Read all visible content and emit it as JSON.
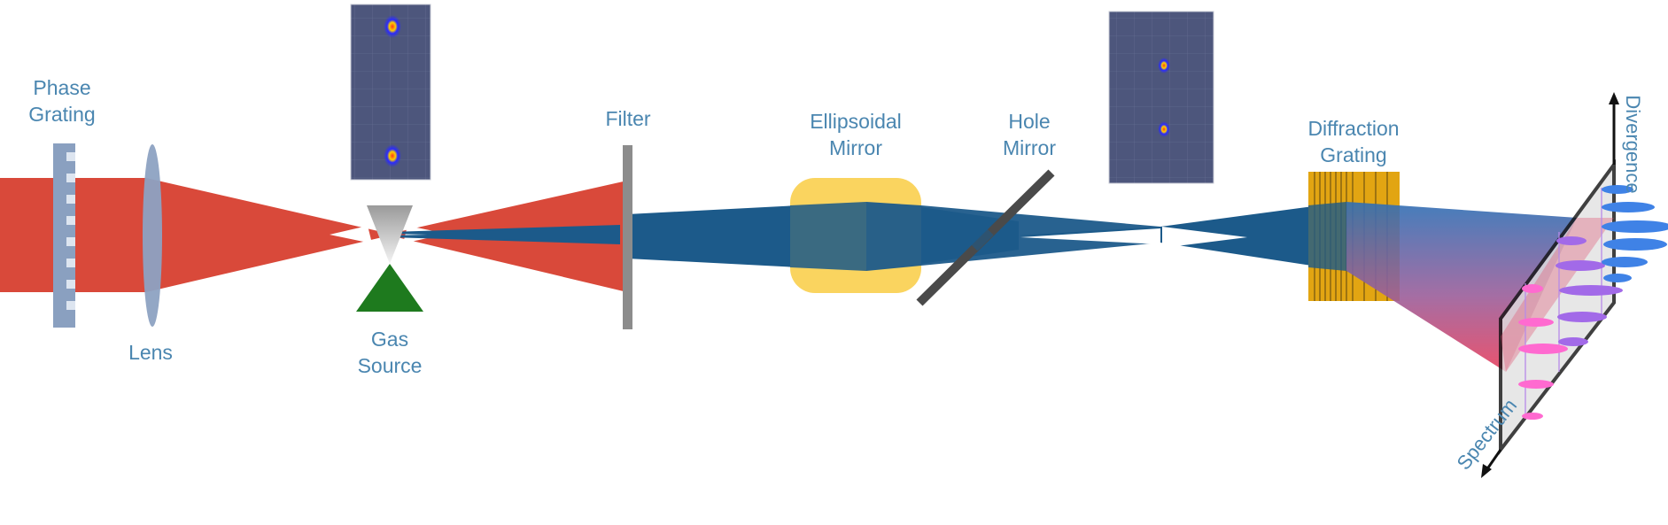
{
  "labels": {
    "phase_grating": [
      "Phase",
      "Grating"
    ],
    "lens": "Lens",
    "gas_source": [
      "Gas",
      "Source"
    ],
    "filter": "Filter",
    "ellipsoidal_mirror": [
      "Ellipsoidal",
      "Mirror"
    ],
    "hole_mirror": [
      "Hole",
      "Mirror"
    ],
    "diffraction_grating": [
      "Diffraction",
      "Grating"
    ],
    "divergence_axis": "Divergence",
    "spectrum_axis": "Spectrum"
  },
  "colors": {
    "label_text": "#4a86b0",
    "ir_beam": "#d9493a",
    "xuv_beam": "#1c5a8a",
    "phase_grating": "#8aa0c0",
    "lens": "#8da2c2",
    "mirror_box": "#f9cf4e",
    "grating": "#e2a512",
    "gas_jet": "#1e7a1e",
    "detector": "#e0e0e0",
    "spot_pink": "#ff6ad0",
    "spot_purple": "#a26ae8",
    "spot_blue": "#3f82e6",
    "inset_bg": "#4a5278"
  }
}
